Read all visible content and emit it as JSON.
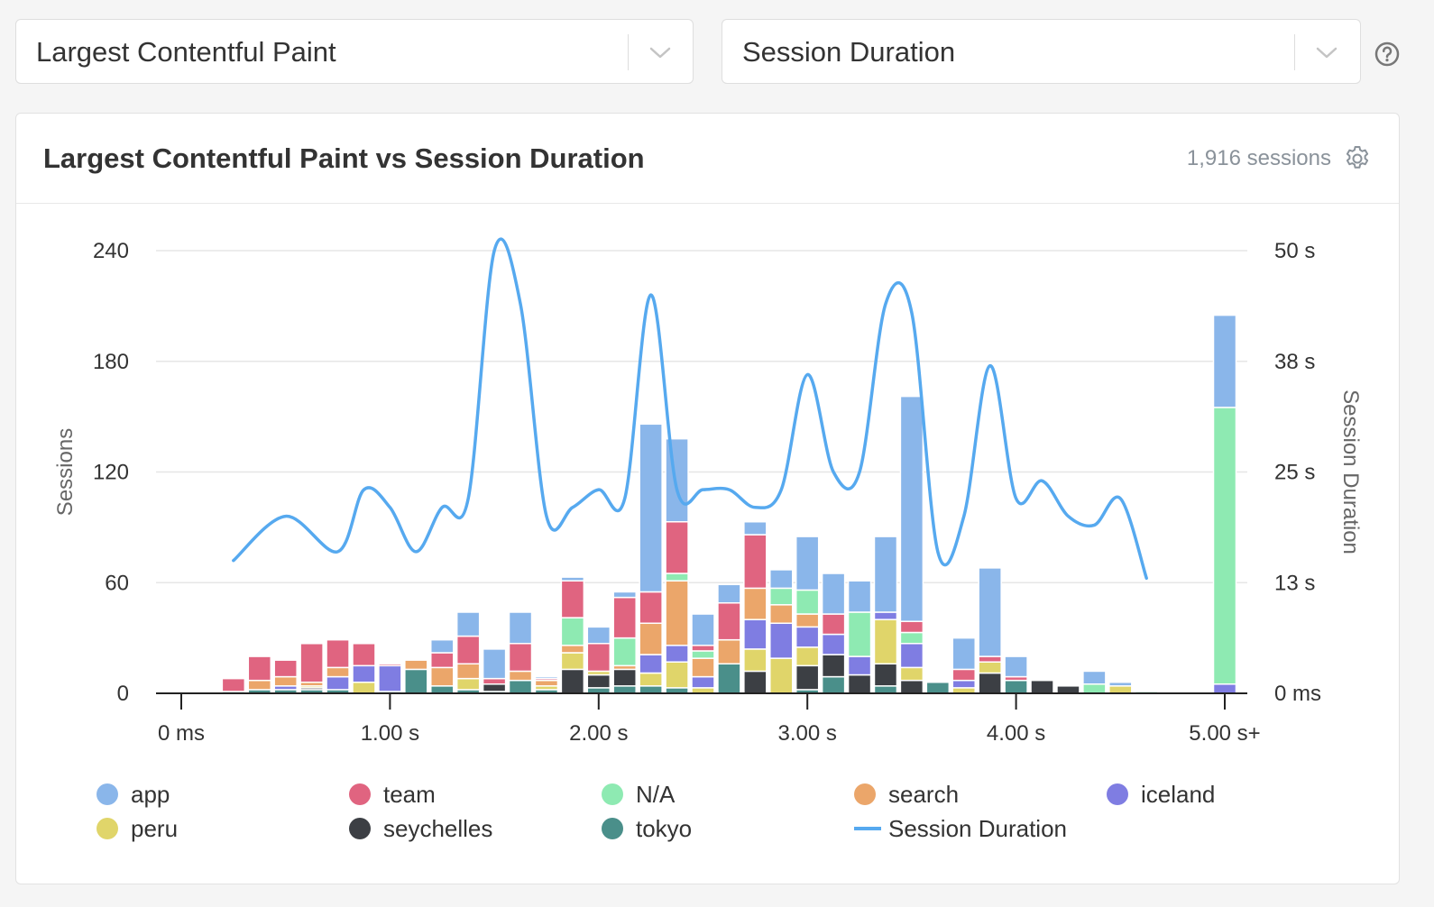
{
  "controls": {
    "metric_select": "Largest Contentful Paint",
    "dimension_select": "Session Duration"
  },
  "card": {
    "title": "Largest Contentful Paint vs Session Duration",
    "sessions": "1,916 sessions"
  },
  "chart_data": {
    "type": "bar",
    "stacked": true,
    "title": "Largest Contentful Paint vs Session Duration",
    "ylabel": "Sessions",
    "y2label": "Session Duration",
    "ylim": [
      0,
      240
    ],
    "y_ticks": [
      "0",
      "60",
      "120",
      "180",
      "240"
    ],
    "y2_ticks": [
      "0 ms",
      "13 s",
      "25 s",
      "38 s",
      "50 s"
    ],
    "x_ticks": [
      "0 ms",
      "1.00 s",
      "2.00 s",
      "3.00 s",
      "4.00 s",
      "5.00 s+"
    ],
    "x_tick_values": [
      0,
      1,
      2,
      3,
      4,
      5
    ],
    "x_unit": "s",
    "bin_width": 0.1,
    "legend_position": "bottom",
    "bins": [
      0.25,
      0.375,
      0.5,
      0.625,
      0.75,
      0.875,
      1.0,
      1.125,
      1.25,
      1.375,
      1.5,
      1.625,
      1.75,
      1.875,
      2.0,
      2.125,
      2.25,
      2.375,
      2.5,
      2.625,
      2.75,
      2.875,
      3.0,
      3.125,
      3.25,
      3.375,
      3.5,
      3.625,
      3.75,
      3.875,
      4.0,
      4.125,
      4.25,
      4.375,
      4.5,
      4.625,
      5.0
    ],
    "series": [
      {
        "name": "tokyo",
        "color": "#4a8f8a",
        "values": [
          1,
          2,
          2,
          2,
          2,
          0,
          1,
          13,
          4,
          2,
          1,
          7,
          2,
          0,
          3,
          4,
          4,
          3,
          0,
          16,
          0,
          0,
          2,
          9,
          0,
          4,
          0,
          6,
          0,
          0,
          7,
          0,
          0,
          0,
          0,
          0,
          0
        ]
      },
      {
        "name": "seychelles",
        "color": "#3c3f44",
        "values": [
          0,
          0,
          0,
          1,
          0,
          0,
          0,
          0,
          0,
          0,
          4,
          0,
          0,
          13,
          7,
          9,
          0,
          0,
          0,
          0,
          12,
          0,
          13,
          12,
          10,
          12,
          7,
          0,
          0,
          11,
          0,
          7,
          4,
          0,
          0,
          0,
          0
        ]
      },
      {
        "name": "peru",
        "color": "#e0d56a",
        "values": [
          0,
          0,
          0,
          1,
          0,
          6,
          0,
          0,
          0,
          6,
          0,
          0,
          2,
          9,
          2,
          0,
          7,
          14,
          3,
          0,
          12,
          19,
          10,
          0,
          0,
          24,
          7,
          0,
          3,
          6,
          0,
          0,
          0,
          0,
          4,
          0,
          0
        ]
      },
      {
        "name": "iceland",
        "color": "#7f7de2",
        "values": [
          0,
          0,
          2,
          0,
          7,
          9,
          14,
          0,
          0,
          0,
          0,
          0,
          0,
          0,
          0,
          0,
          10,
          9,
          6,
          0,
          16,
          19,
          11,
          11,
          10,
          4,
          13,
          0,
          4,
          0,
          0,
          0,
          0,
          0,
          0,
          0,
          5
        ]
      },
      {
        "name": "search",
        "color": "#eba66a",
        "values": [
          0,
          5,
          5,
          2,
          5,
          0,
          0,
          5,
          10,
          8,
          0,
          5,
          3,
          4,
          0,
          2,
          17,
          35,
          10,
          13,
          17,
          10,
          7,
          0,
          0,
          0,
          0,
          0,
          0,
          0,
          0,
          0,
          0,
          0,
          0,
          0,
          0
        ]
      },
      {
        "name": "N/A",
        "color": "#8eeab2",
        "values": [
          0,
          0,
          0,
          0,
          0,
          0,
          0,
          0,
          0,
          0,
          0,
          0,
          0,
          15,
          0,
          15,
          0,
          4,
          4,
          0,
          0,
          9,
          13,
          0,
          24,
          0,
          6,
          0,
          0,
          0,
          0,
          0,
          0,
          5,
          0,
          1,
          150
        ]
      },
      {
        "name": "team",
        "color": "#e06480",
        "values": [
          7,
          13,
          9,
          21,
          15,
          12,
          1,
          0,
          8,
          15,
          3,
          15,
          1,
          20,
          15,
          22,
          17,
          28,
          3,
          20,
          29,
          0,
          0,
          11,
          0,
          0,
          6,
          0,
          6,
          3,
          2,
          0,
          0,
          0,
          0,
          0,
          0
        ]
      },
      {
        "name": "app",
        "color": "#8ab6ea",
        "values": [
          0,
          0,
          0,
          0,
          0,
          0,
          0,
          0,
          7,
          13,
          16,
          17,
          1,
          2,
          9,
          3,
          91,
          45,
          17,
          10,
          7,
          10,
          29,
          22,
          17,
          41,
          122,
          0,
          17,
          48,
          11,
          0,
          0,
          7,
          2,
          0,
          50
        ]
      }
    ],
    "line": {
      "name": "Session Duration",
      "color": "#56a9ef",
      "unit": "s",
      "ylim": [
        0,
        50
      ],
      "x": [
        0.25,
        0.5,
        0.75,
        0.875,
        1.0,
        1.125,
        1.25,
        1.375,
        1.5,
        1.625,
        1.75,
        1.875,
        2.0,
        2.125,
        2.25,
        2.375,
        2.5,
        2.625,
        2.75,
        2.875,
        3.0,
        3.125,
        3.25,
        3.375,
        3.5,
        3.625,
        3.75,
        3.875,
        4.0,
        4.125,
        4.25,
        4.375,
        4.5,
        4.625
      ],
      "y": [
        15,
        20,
        16,
        23,
        21,
        16,
        21,
        22,
        50,
        44,
        20,
        21,
        23,
        22,
        45,
        23,
        23,
        23,
        21,
        23,
        36,
        25,
        25,
        44,
        43,
        16,
        20,
        37,
        22,
        24,
        20,
        19,
        22,
        13
      ]
    }
  },
  "legend": [
    {
      "label": "app",
      "color": "#8ab6ea",
      "kind": "dot"
    },
    {
      "label": "team",
      "color": "#e06480",
      "kind": "dot"
    },
    {
      "label": "N/A",
      "color": "#8eeab2",
      "kind": "dot"
    },
    {
      "label": "search",
      "color": "#eba66a",
      "kind": "dot"
    },
    {
      "label": "iceland",
      "color": "#7f7de2",
      "kind": "dot"
    },
    {
      "label": "peru",
      "color": "#e0d56a",
      "kind": "dot"
    },
    {
      "label": "seychelles",
      "color": "#3c3f44",
      "kind": "dot"
    },
    {
      "label": "tokyo",
      "color": "#4a8f8a",
      "kind": "dot"
    },
    {
      "label": "Session Duration",
      "color": "#56a9ef",
      "kind": "line"
    }
  ]
}
